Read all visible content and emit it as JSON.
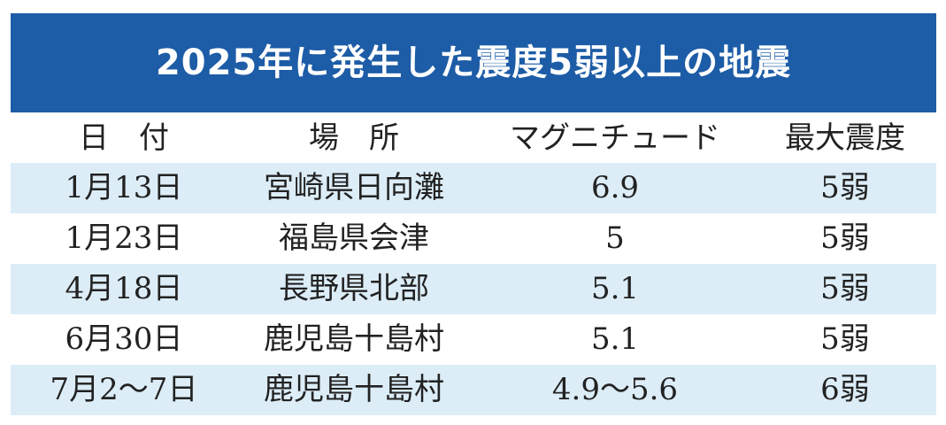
{
  "header": {
    "title": "2025年に発生した震度5弱以上の地震"
  },
  "table": {
    "columns": [
      "日　付",
      "場　所",
      "マグニチュード",
      "最大震度"
    ],
    "rows": [
      [
        "1月13日",
        "宮崎県日向灘",
        "6.9",
        "5弱"
      ],
      [
        "1月23日",
        "福島県会津",
        "5",
        "5弱"
      ],
      [
        "4月18日",
        "長野県北部",
        "5.1",
        "5弱"
      ],
      [
        "6月30日",
        "鹿児島十島村",
        "5.1",
        "5弱"
      ],
      [
        "7月2～7日",
        "鹿児島十島村",
        "4.9～5.6",
        "6弱"
      ]
    ]
  }
}
